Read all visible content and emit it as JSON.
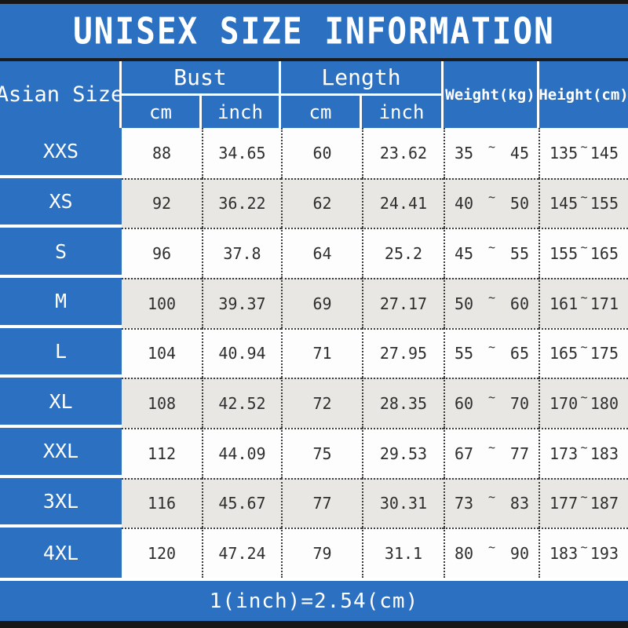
{
  "title": "UNISEX SIZE INFORMATION",
  "colors": {
    "accent_blue": "#2c71c1",
    "row_white": "#fdfdfd",
    "row_gray": "#e8e7e4",
    "frame_black": "#171717",
    "dotted_line": "#3c3c3c"
  },
  "header": {
    "size_col": "Asian Size",
    "bust": "Bust",
    "length": "Length",
    "bust_cm": "cm",
    "bust_inch": "inch",
    "length_cm": "cm",
    "length_inch": "inch",
    "weight": "Weight(kg)",
    "height": "Height(cm)"
  },
  "tilde": "~",
  "table": {
    "rows": [
      {
        "size": "XXS",
        "bust_cm": "88",
        "bust_inch": "34.65",
        "length_cm": "60",
        "length_inch": "23.62",
        "weight_min": "35",
        "weight_max": "45",
        "height_min": "135",
        "height_max": "145"
      },
      {
        "size": "XS",
        "bust_cm": "92",
        "bust_inch": "36.22",
        "length_cm": "62",
        "length_inch": "24.41",
        "weight_min": "40",
        "weight_max": "50",
        "height_min": "145",
        "height_max": "155"
      },
      {
        "size": "S",
        "bust_cm": "96",
        "bust_inch": "37.8",
        "length_cm": "64",
        "length_inch": "25.2",
        "weight_min": "45",
        "weight_max": "55",
        "height_min": "155",
        "height_max": "165"
      },
      {
        "size": "M",
        "bust_cm": "100",
        "bust_inch": "39.37",
        "length_cm": "69",
        "length_inch": "27.17",
        "weight_min": "50",
        "weight_max": "60",
        "height_min": "161",
        "height_max": "171"
      },
      {
        "size": "L",
        "bust_cm": "104",
        "bust_inch": "40.94",
        "length_cm": "71",
        "length_inch": "27.95",
        "weight_min": "55",
        "weight_max": "65",
        "height_min": "165",
        "height_max": "175"
      },
      {
        "size": "XL",
        "bust_cm": "108",
        "bust_inch": "42.52",
        "length_cm": "72",
        "length_inch": "28.35",
        "weight_min": "60",
        "weight_max": "70",
        "height_min": "170",
        "height_max": "180"
      },
      {
        "size": "XXL",
        "bust_cm": "112",
        "bust_inch": "44.09",
        "length_cm": "75",
        "length_inch": "29.53",
        "weight_min": "67",
        "weight_max": "77",
        "height_min": "173",
        "height_max": "183"
      },
      {
        "size": "3XL",
        "bust_cm": "116",
        "bust_inch": "45.67",
        "length_cm": "77",
        "length_inch": "30.31",
        "weight_min": "73",
        "weight_max": "83",
        "height_min": "177",
        "height_max": "187"
      },
      {
        "size": "4XL",
        "bust_cm": "120",
        "bust_inch": "47.24",
        "length_cm": "79",
        "length_inch": "31.1",
        "weight_min": "80",
        "weight_max": "90",
        "height_min": "183",
        "height_max": "193"
      }
    ]
  },
  "footer": {
    "note": "1(inch)=2.54(cm)"
  }
}
